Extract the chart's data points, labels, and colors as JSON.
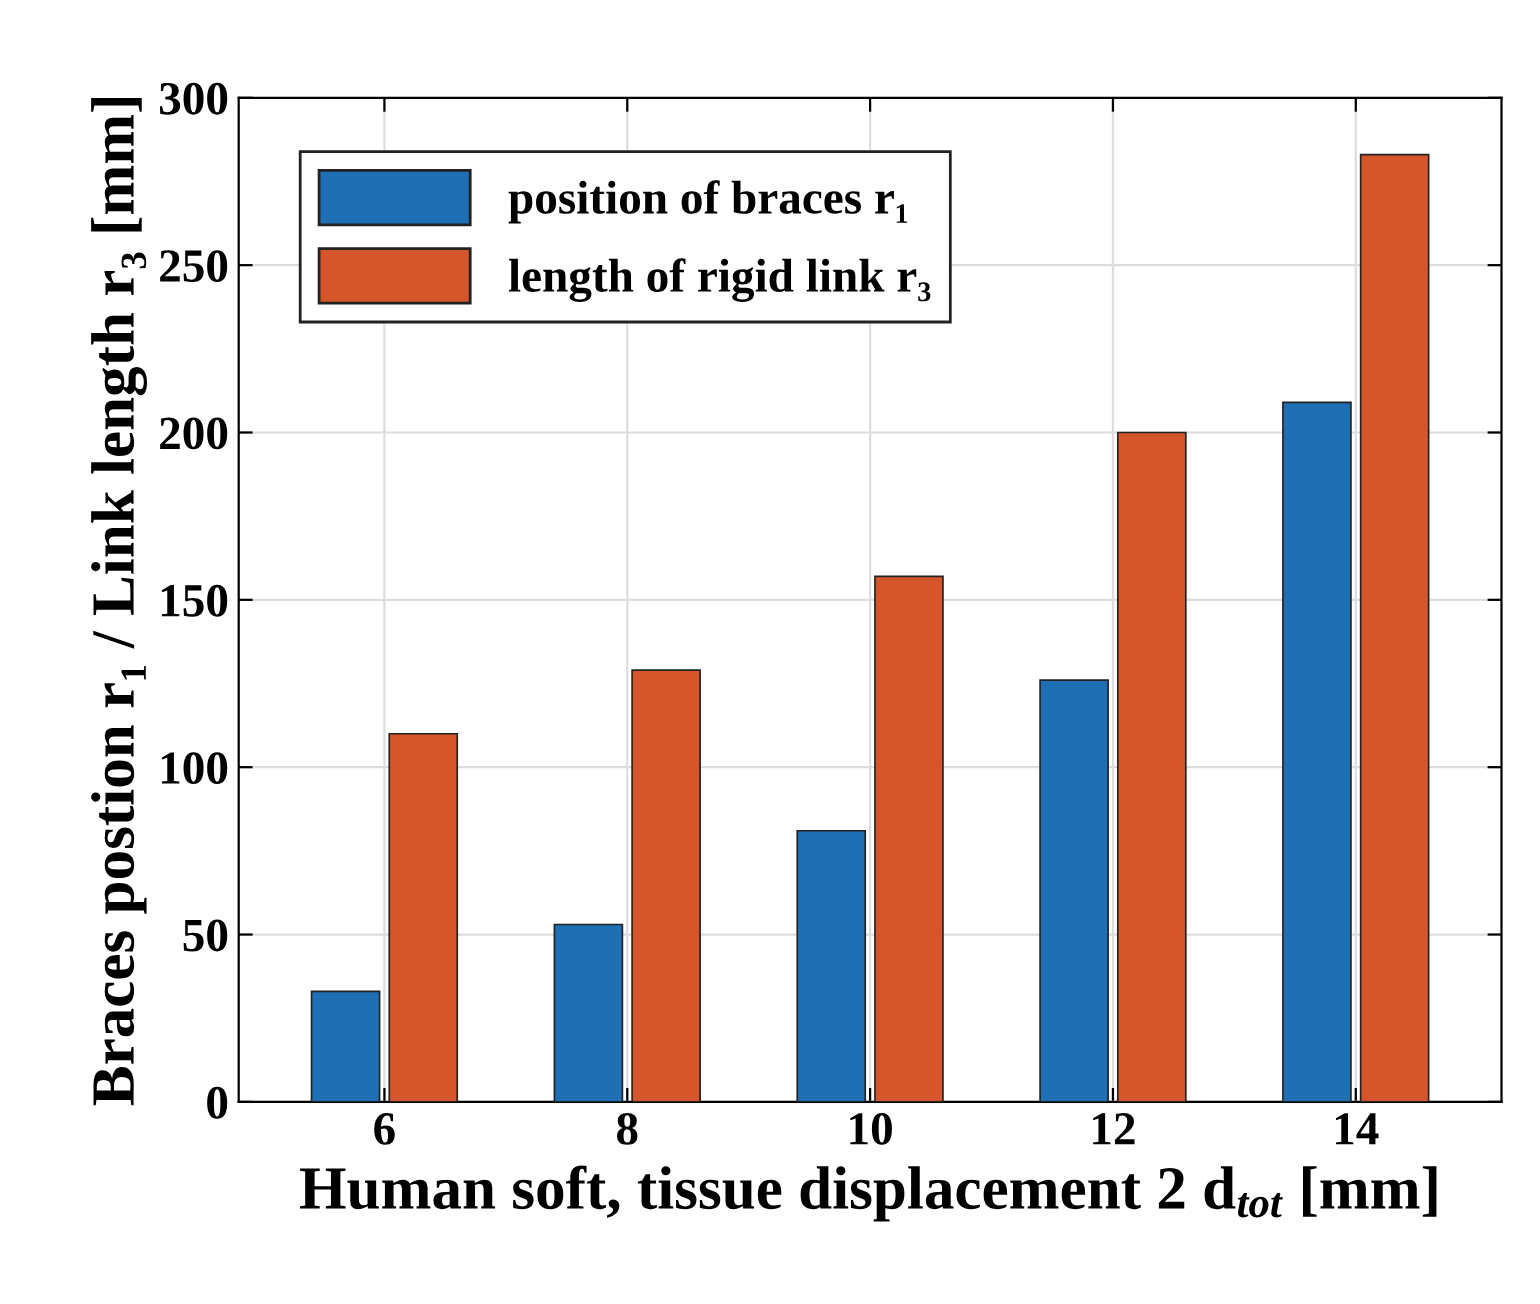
{
  "chart_data": {
    "type": "bar",
    "xlabel": "Human soft, tissue displacement 2 d$_{tot}$ [mm]",
    "ylabel": "Braces postion r₁ / Link length r₃ [mm]",
    "categories": [
      "6",
      "8",
      "10",
      "12",
      "14"
    ],
    "series": [
      {
        "name": "position of braces r₁",
        "color": "#1f6fb5",
        "values": [
          33,
          53,
          81,
          126,
          209
        ]
      },
      {
        "name": "length of rigid link r₃",
        "color": "#d4562a",
        "values": [
          110,
          129,
          157,
          200,
          283
        ]
      }
    ],
    "ylim": [
      0,
      300
    ],
    "yticks": [
      0,
      50,
      100,
      150,
      200,
      250,
      300
    ],
    "grid": true,
    "legend": "top left"
  }
}
